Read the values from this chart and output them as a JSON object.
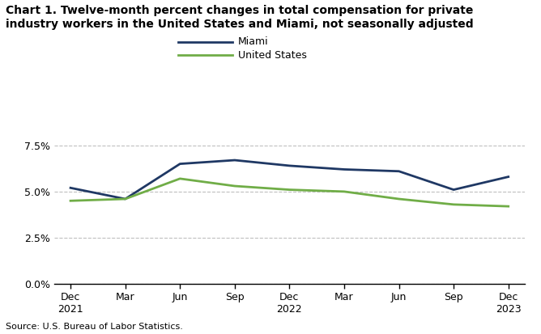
{
  "title_line1": "Chart 1. Twelve-month percent changes in total compensation for private",
  "title_line2": "industry workers in the United States and Miami, not seasonally adjusted",
  "x_labels": [
    "Dec\n2021",
    "Mar",
    "Jun",
    "Sep",
    "Dec\n2022",
    "Mar",
    "Jun",
    "Sep",
    "Dec\n2023"
  ],
  "miami_values": [
    5.2,
    4.6,
    6.5,
    6.7,
    6.4,
    6.2,
    6.1,
    5.1,
    5.8
  ],
  "us_values": [
    4.5,
    4.6,
    5.7,
    5.3,
    5.1,
    5.0,
    4.6,
    4.3,
    4.2
  ],
  "miami_color": "#1f3864",
  "us_color": "#70ad47",
  "ylim": [
    0.0,
    8.5
  ],
  "yticks": [
    0.0,
    2.5,
    5.0,
    7.5
  ],
  "ytick_labels": [
    "0.0%",
    "2.5%",
    "5.0%",
    "7.5%"
  ],
  "source_text": "Source: U.S. Bureau of Labor Statistics.",
  "legend_labels": [
    "Miami",
    "United States"
  ],
  "background_color": "#ffffff",
  "grid_color": "#bfbfbf"
}
